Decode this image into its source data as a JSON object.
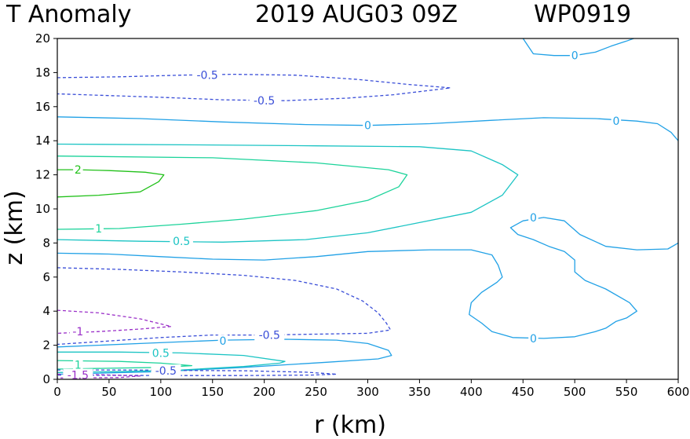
{
  "chart_data": {
    "type": "contour",
    "title": "T Anomaly",
    "date_label": "2019 AUG03 09Z",
    "storm_label": "WP0919",
    "xlabel": "r (km)",
    "ylabel": "z (km)",
    "xlim": [
      0,
      600
    ],
    "ylim": [
      0,
      20
    ],
    "x_ticks": [
      0,
      50,
      100,
      150,
      200,
      250,
      300,
      350,
      400,
      450,
      500,
      550,
      600
    ],
    "y_ticks": [
      0,
      2,
      4,
      6,
      8,
      10,
      12,
      14,
      16,
      18,
      20
    ],
    "contours": [
      {
        "level": 0,
        "label": "0",
        "color": "#21a1e6",
        "dashed": false,
        "points": [
          [
            450,
            20.0
          ],
          [
            460,
            19.1
          ],
          [
            480,
            19.0
          ],
          [
            500,
            19.0
          ],
          [
            520,
            19.2
          ],
          [
            535,
            19.55
          ],
          [
            550,
            19.85
          ],
          [
            557,
            20.0
          ]
        ]
      },
      {
        "level": 0,
        "label": "0",
        "color": "#21a1e6",
        "dashed": false,
        "points": [
          [
            0,
            15.4
          ],
          [
            80,
            15.3
          ],
          [
            160,
            15.1
          ],
          [
            240,
            14.95
          ],
          [
            300,
            14.9
          ],
          [
            360,
            15.0
          ],
          [
            420,
            15.2
          ],
          [
            470,
            15.35
          ],
          [
            520,
            15.3
          ],
          [
            560,
            15.15
          ],
          [
            580,
            15.0
          ],
          [
            593,
            14.5
          ],
          [
            600,
            14.0
          ]
        ]
      },
      {
        "level": 0,
        "label": "0",
        "color": "#21a1e6",
        "dashed": false,
        "points": [
          [
            600,
            8.0
          ],
          [
            590,
            7.65
          ],
          [
            560,
            7.6
          ],
          [
            530,
            7.8
          ],
          [
            505,
            8.5
          ],
          [
            490,
            9.3
          ],
          [
            470,
            9.5
          ],
          [
            450,
            9.3
          ],
          [
            438,
            8.9
          ],
          [
            445,
            8.5
          ],
          [
            460,
            8.2
          ],
          [
            475,
            7.8
          ],
          [
            490,
            7.5
          ],
          [
            500,
            7.0
          ],
          [
            500,
            6.3
          ],
          [
            510,
            5.8
          ],
          [
            530,
            5.3
          ],
          [
            553,
            4.5
          ],
          [
            560,
            4.0
          ],
          [
            550,
            3.6
          ],
          [
            540,
            3.4
          ],
          [
            530,
            3.0
          ],
          [
            520,
            2.8
          ],
          [
            500,
            2.5
          ],
          [
            470,
            2.4
          ],
          [
            440,
            2.45
          ],
          [
            420,
            2.8
          ],
          [
            410,
            3.3
          ],
          [
            398,
            3.8
          ],
          [
            400,
            4.5
          ],
          [
            410,
            5.1
          ],
          [
            425,
            5.7
          ],
          [
            430,
            6.0
          ],
          [
            426,
            6.7
          ],
          [
            420,
            7.3
          ],
          [
            400,
            7.6
          ],
          [
            360,
            7.6
          ],
          [
            300,
            7.5
          ],
          [
            250,
            7.2
          ],
          [
            200,
            7.0
          ],
          [
            150,
            7.05
          ],
          [
            100,
            7.2
          ],
          [
            50,
            7.35
          ],
          [
            0,
            7.4
          ]
        ]
      },
      {
        "level": 0,
        "label": "0",
        "color": "#21a1e6",
        "dashed": false,
        "points": [
          [
            0,
            1.9
          ],
          [
            80,
            2.1
          ],
          [
            160,
            2.3
          ],
          [
            220,
            2.35
          ],
          [
            270,
            2.3
          ],
          [
            300,
            2.1
          ],
          [
            320,
            1.7
          ],
          [
            323,
            1.4
          ],
          [
            310,
            1.2
          ],
          [
            260,
            1.0
          ],
          [
            180,
            0.7
          ],
          [
            100,
            0.45
          ],
          [
            0,
            0.3
          ]
        ]
      },
      {
        "level": 0.5,
        "label": "0.5",
        "color": "#1cc4c4",
        "dashed": false,
        "points": [
          [
            0,
            8.2
          ],
          [
            80,
            8.1
          ],
          [
            160,
            8.05
          ],
          [
            240,
            8.2
          ],
          [
            300,
            8.6
          ],
          [
            350,
            9.2
          ],
          [
            400,
            9.8
          ],
          [
            430,
            10.8
          ],
          [
            445,
            12.0
          ],
          [
            430,
            12.6
          ],
          [
            400,
            13.4
          ],
          [
            350,
            13.65
          ],
          [
            250,
            13.7
          ],
          [
            150,
            13.75
          ],
          [
            0,
            13.8
          ]
        ]
      },
      {
        "level": 0.5,
        "label": "0.5",
        "color": "#1cc4c4",
        "dashed": false,
        "points": [
          [
            0,
            1.6
          ],
          [
            60,
            1.6
          ],
          [
            120,
            1.55
          ],
          [
            180,
            1.4
          ],
          [
            220,
            1.05
          ],
          [
            215,
            0.95
          ],
          [
            180,
            0.75
          ],
          [
            120,
            0.55
          ],
          [
            60,
            0.45
          ],
          [
            0,
            0.4
          ]
        ]
      },
      {
        "level": 1,
        "label": "1",
        "color": "#1cd39a",
        "dashed": false,
        "points": [
          [
            0,
            8.8
          ],
          [
            60,
            8.85
          ],
          [
            120,
            9.1
          ],
          [
            180,
            9.4
          ],
          [
            250,
            9.9
          ],
          [
            300,
            10.5
          ],
          [
            330,
            11.3
          ],
          [
            338,
            12.0
          ],
          [
            320,
            12.3
          ],
          [
            250,
            12.7
          ],
          [
            150,
            13.0
          ],
          [
            0,
            13.1
          ]
        ]
      },
      {
        "level": 1,
        "label": "1",
        "color": "#1cd39a",
        "dashed": false,
        "points": [
          [
            0,
            1.1
          ],
          [
            60,
            1.05
          ],
          [
            100,
            0.95
          ],
          [
            130,
            0.8
          ],
          [
            100,
            0.7
          ],
          [
            50,
            0.65
          ],
          [
            0,
            0.6
          ]
        ]
      },
      {
        "level": 2,
        "label": "2",
        "color": "#22c11a",
        "dashed": false,
        "points": [
          [
            0,
            10.7
          ],
          [
            40,
            10.8
          ],
          [
            80,
            11.0
          ],
          [
            98,
            11.6
          ],
          [
            103,
            12.0
          ],
          [
            85,
            12.15
          ],
          [
            50,
            12.25
          ],
          [
            20,
            12.3
          ],
          [
            0,
            12.3
          ]
        ]
      },
      {
        "level": -0.5,
        "label": "-0.5",
        "color": "#3a4ed8",
        "dashed": true,
        "points": [
          [
            0,
            17.7
          ],
          [
            60,
            17.75
          ],
          [
            120,
            17.85
          ],
          [
            170,
            17.9
          ],
          [
            230,
            17.85
          ],
          [
            290,
            17.6
          ],
          [
            340,
            17.3
          ],
          [
            380,
            17.1
          ],
          [
            325,
            16.7
          ],
          [
            280,
            16.5
          ],
          [
            220,
            16.35
          ],
          [
            160,
            16.4
          ],
          [
            100,
            16.55
          ],
          [
            50,
            16.65
          ],
          [
            0,
            16.75
          ]
        ]
      },
      {
        "level": -0.5,
        "label": "-0.5",
        "color": "#3a4ed8",
        "dashed": true,
        "points": [
          [
            0,
            6.55
          ],
          [
            60,
            6.45
          ],
          [
            120,
            6.3
          ],
          [
            180,
            6.1
          ],
          [
            230,
            5.8
          ],
          [
            270,
            5.3
          ],
          [
            295,
            4.6
          ],
          [
            310,
            3.9
          ],
          [
            318,
            3.3
          ],
          [
            322,
            2.9
          ],
          [
            300,
            2.7
          ],
          [
            250,
            2.65
          ],
          [
            200,
            2.6
          ],
          [
            150,
            2.6
          ],
          [
            100,
            2.45
          ],
          [
            50,
            2.25
          ],
          [
            0,
            2.05
          ]
        ]
      },
      {
        "level": -0.5,
        "label": "-0.5",
        "color": "#3a4ed8",
        "dashed": true,
        "points": [
          [
            0,
            0.55
          ],
          [
            70,
            0.55
          ],
          [
            120,
            0.52
          ],
          [
            180,
            0.5
          ],
          [
            240,
            0.42
          ],
          [
            270,
            0.3
          ],
          [
            245,
            0.25
          ],
          [
            180,
            0.22
          ],
          [
            100,
            0.22
          ],
          [
            0,
            0.25
          ]
        ]
      },
      {
        "level": -1,
        "label": "-1",
        "color": "#9a2fc8",
        "dashed": true,
        "points": [
          [
            0,
            4.05
          ],
          [
            40,
            3.9
          ],
          [
            80,
            3.55
          ],
          [
            110,
            3.1
          ],
          [
            80,
            2.95
          ],
          [
            40,
            2.8
          ],
          [
            0,
            2.7
          ]
        ]
      },
      {
        "level": -1.5,
        "label": "-1.5",
        "color": "#9a2fc8",
        "dashed": true,
        "points": [
          [
            0,
            0.3
          ],
          [
            40,
            0.27
          ],
          [
            80,
            0.2
          ],
          [
            60,
            0.1
          ],
          [
            0,
            0.08
          ]
        ]
      }
    ],
    "labels": [
      {
        "text": "0",
        "x": 500,
        "y": 19.0,
        "color": "#21a1e6"
      },
      {
        "text": "0",
        "x": 300,
        "y": 14.9,
        "color": "#21a1e6"
      },
      {
        "text": "0",
        "x": 540,
        "y": 15.15,
        "color": "#21a1e6"
      },
      {
        "text": "0",
        "x": 460,
        "y": 9.5,
        "color": "#21a1e6"
      },
      {
        "text": "0",
        "x": 460,
        "y": 2.4,
        "color": "#21a1e6"
      },
      {
        "text": "0",
        "x": 160,
        "y": 2.25,
        "color": "#21a1e6"
      },
      {
        "text": "-0.5",
        "x": 145,
        "y": 17.85,
        "color": "#3a4ed8"
      },
      {
        "text": "-0.5",
        "x": 200,
        "y": 16.35,
        "color": "#3a4ed8"
      },
      {
        "text": "-0.5",
        "x": 205,
        "y": 2.6,
        "color": "#3a4ed8"
      },
      {
        "text": "-0.5",
        "x": 105,
        "y": 0.5,
        "color": "#3a4ed8"
      },
      {
        "text": "2",
        "x": 20,
        "y": 12.3,
        "color": "#22c11a"
      },
      {
        "text": "1",
        "x": 40,
        "y": 8.85,
        "color": "#1cd39a"
      },
      {
        "text": "1",
        "x": 20,
        "y": 0.85,
        "color": "#1cd39a"
      },
      {
        "text": "0.5",
        "x": 120,
        "y": 8.1,
        "color": "#1cc4c4"
      },
      {
        "text": "0.5",
        "x": 100,
        "y": 1.55,
        "color": "#1cc4c4"
      },
      {
        "text": "-1",
        "x": 20,
        "y": 2.8,
        "color": "#9a2fc8"
      },
      {
        "text": "-1.5",
        "x": 20,
        "y": 0.25,
        "color": "#9a2fc8"
      }
    ]
  }
}
